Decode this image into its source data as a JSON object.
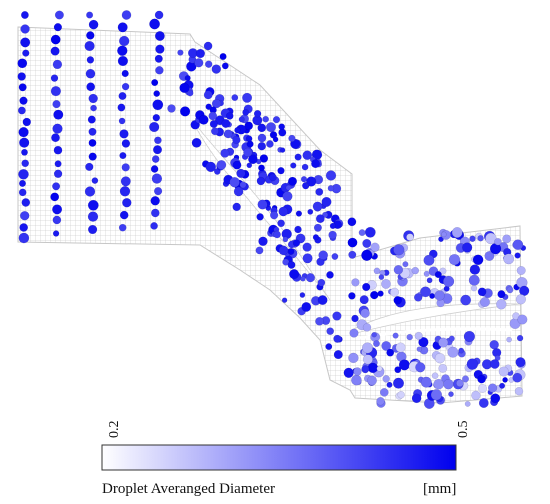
{
  "colorbar": {
    "min_label": "0.2",
    "max_label": "0.5",
    "title": "Droplet Averanged Diameter",
    "unit": "[mm]",
    "color_low": "#ffffff",
    "color_high": "#0000ee"
  },
  "mesh": {
    "color": "#b5b5b5",
    "blade_gap_color": "#ffffff"
  },
  "droplets": {
    "diameter_range_mm": [
      0.2,
      0.5
    ]
  }
}
